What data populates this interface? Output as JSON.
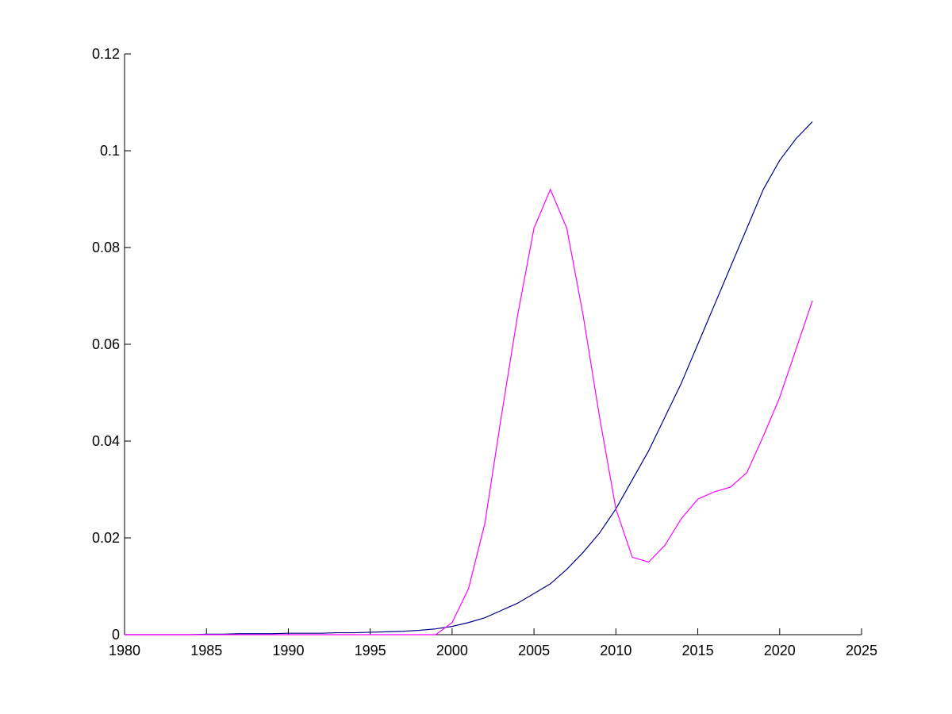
{
  "chart_data": {
    "type": "line",
    "x": [
      1980,
      1981,
      1982,
      1983,
      1984,
      1985,
      1986,
      1987,
      1988,
      1989,
      1990,
      1991,
      1992,
      1993,
      1994,
      1995,
      1996,
      1997,
      1998,
      1999,
      2000,
      2001,
      2002,
      2003,
      2004,
      2005,
      2006,
      2007,
      2008,
      2009,
      2010,
      2011,
      2012,
      2013,
      2014,
      2015,
      2016,
      2017,
      2018,
      2019,
      2020,
      2021,
      2022
    ],
    "series": [
      {
        "color": "#00008b",
        "values": [
          0,
          0,
          0,
          0,
          0,
          0.0001,
          0.0001,
          0.0002,
          0.0002,
          0.0002,
          0.0003,
          0.0003,
          0.0003,
          0.0004,
          0.0004,
          0.0005,
          0.0006,
          0.0007,
          0.0009,
          0.0012,
          0.0017,
          0.0025,
          0.0035,
          0.005,
          0.0065,
          0.0085,
          0.0105,
          0.0135,
          0.017,
          0.021,
          0.026,
          0.032,
          0.038,
          0.045,
          0.052,
          0.06,
          0.068,
          0.076,
          0.084,
          0.092,
          0.098,
          0.1025,
          0.106
        ]
      },
      {
        "color": "#ff00ff",
        "values": [
          0,
          0,
          0,
          0,
          0,
          0,
          0,
          0,
          0,
          0,
          0,
          0,
          0,
          0,
          0,
          0,
          0,
          0,
          0,
          0,
          0.0025,
          0.0095,
          0.023,
          0.045,
          0.066,
          0.084,
          0.092,
          0.084,
          0.066,
          0.045,
          0.026,
          0.016,
          0.015,
          0.0185,
          0.024,
          0.028,
          0.0295,
          0.0305,
          0.0335,
          0.041,
          0.049,
          0.059,
          0.069
        ]
      }
    ],
    "xlim": [
      1980,
      2025
    ],
    "xticks": [
      1980,
      1985,
      1990,
      1995,
      2000,
      2005,
      2010,
      2015,
      2020,
      2025
    ],
    "ylim": [
      0,
      0.12
    ],
    "yticks": [
      0,
      0.02,
      0.04,
      0.06,
      0.08,
      0.1,
      0.12
    ]
  }
}
